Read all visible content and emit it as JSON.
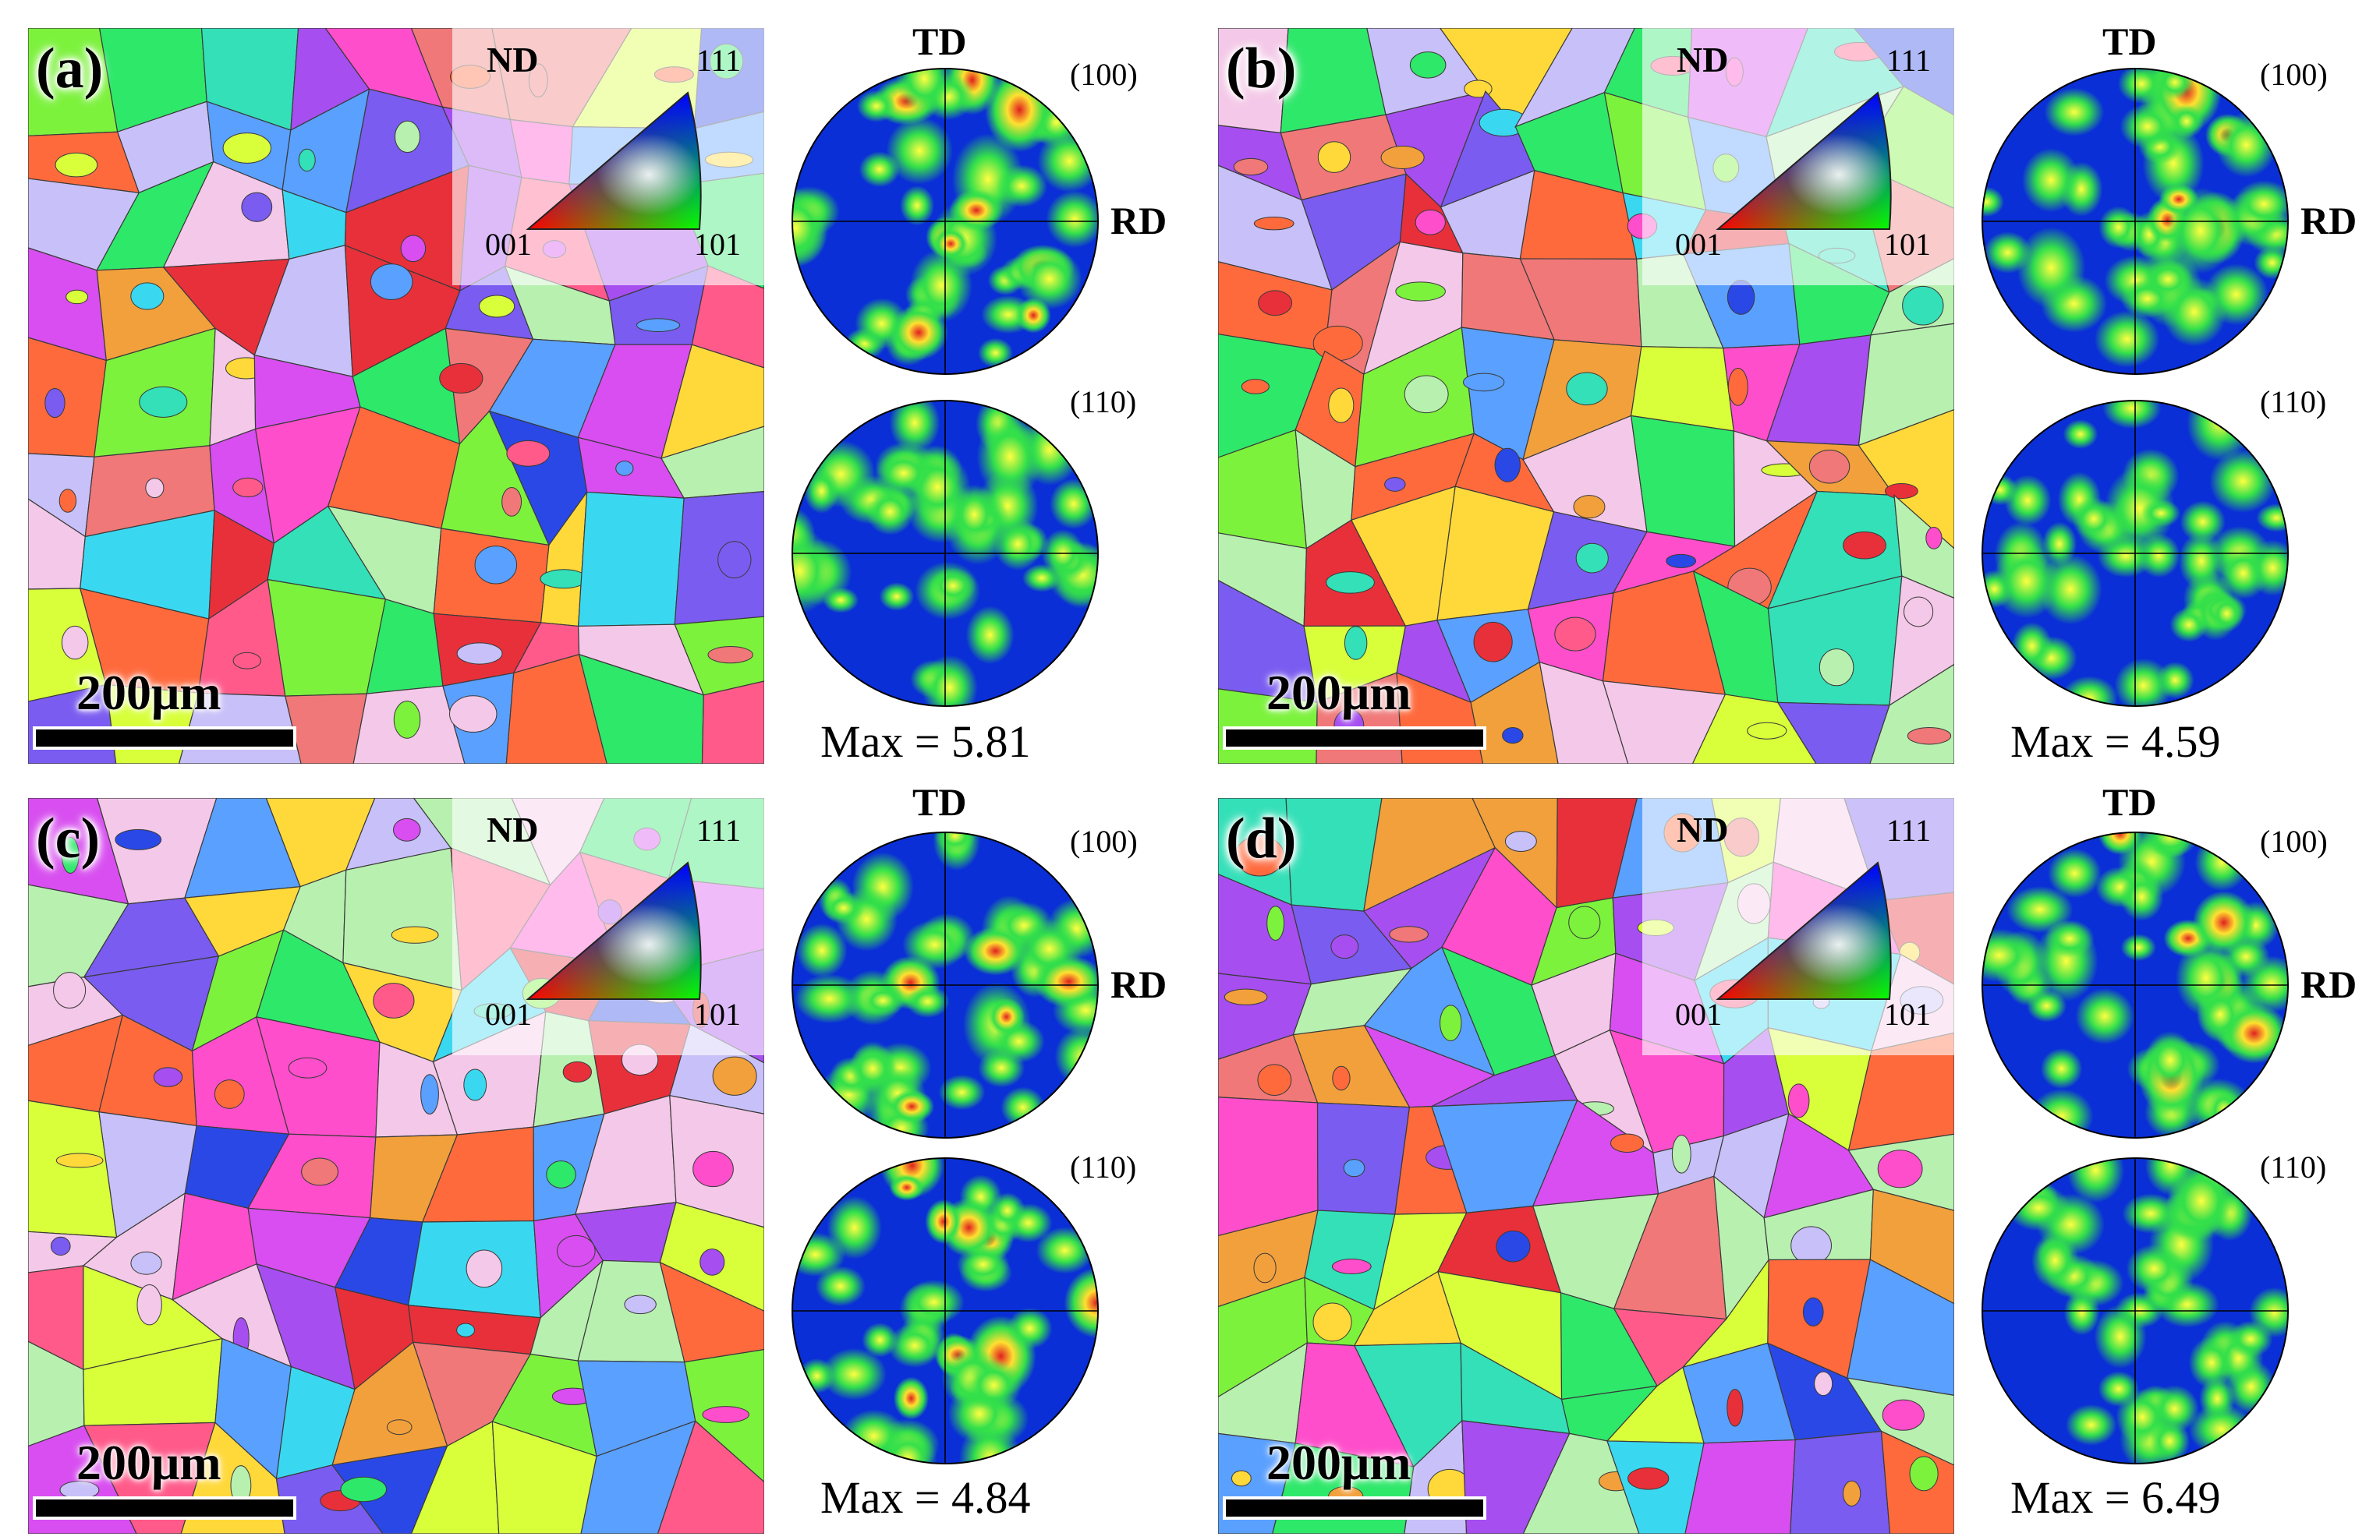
{
  "panels": [
    {
      "label": "(a)",
      "max": "Max = 5.81"
    },
    {
      "label": "(b)",
      "max": "Max = 4.59"
    },
    {
      "label": "(c)",
      "max": "Max = 4.84"
    },
    {
      "label": "(d)",
      "max": "Max = 6.49"
    }
  ],
  "legend": {
    "nd": "ND",
    "v111": "111",
    "v001": "001",
    "v101": "101"
  },
  "scale": {
    "label": "200μm"
  },
  "pole_figures": {
    "top": "(100)",
    "bottom": "(110)",
    "td": "TD",
    "rd": "RD"
  },
  "colors": {
    "pf_background": "#0a2fd6",
    "grain_palette": [
      "#e8303a",
      "#ff6a3d",
      "#f2a03c",
      "#ffd93a",
      "#d8ff3a",
      "#7cf23c",
      "#2ee86a",
      "#33e0b8",
      "#3ad8f0",
      "#5aa0ff",
      "#2a48e6",
      "#7a5cf0",
      "#a64ef0",
      "#d84ef0",
      "#ff4ecb",
      "#ff5a8a",
      "#f07878",
      "#b8f0b0",
      "#c8c0f8",
      "#f4c8e8"
    ]
  }
}
